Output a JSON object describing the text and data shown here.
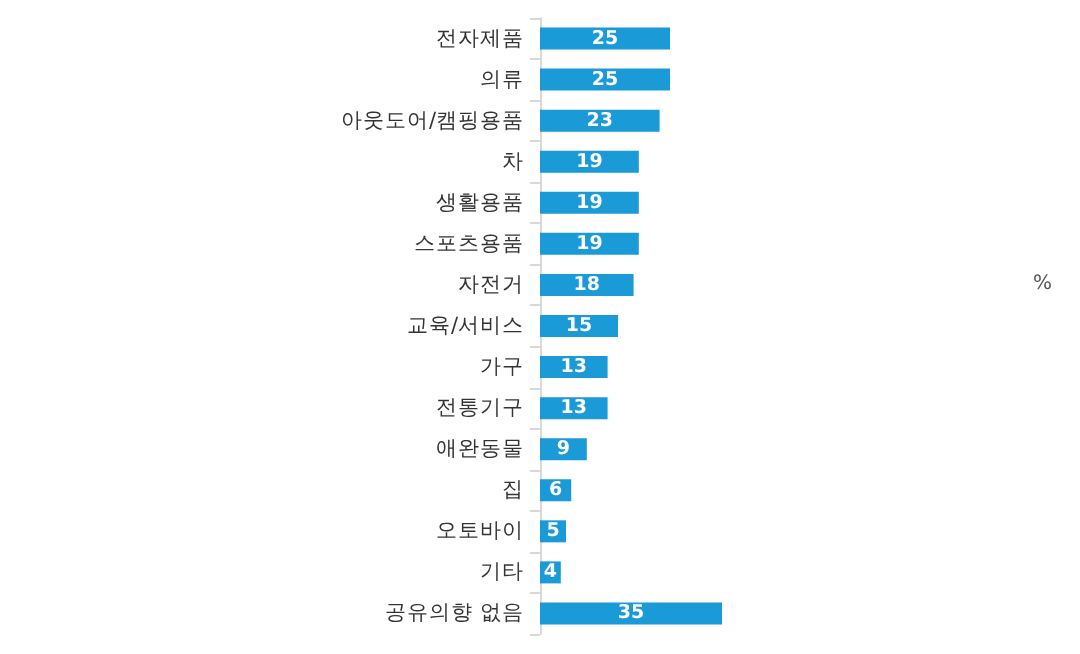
{
  "chart_data": {
    "type": "bar",
    "orientation": "horizontal",
    "categories": [
      "전자제품",
      "의류",
      "아웃도어/캠핑용품",
      "차",
      "생활용품",
      "스포츠용품",
      "자전거",
      "교육/서비스",
      "가구",
      "전통기구",
      "애완동물",
      "집",
      "오토바이",
      "기타",
      "공유의향 없음"
    ],
    "values": [
      25,
      25,
      23,
      19,
      19,
      19,
      18,
      15,
      13,
      13,
      9,
      6,
      5,
      4,
      35
    ],
    "color": "#1a9ad6",
    "data_labels": true,
    "annotations": [
      "%"
    ]
  }
}
